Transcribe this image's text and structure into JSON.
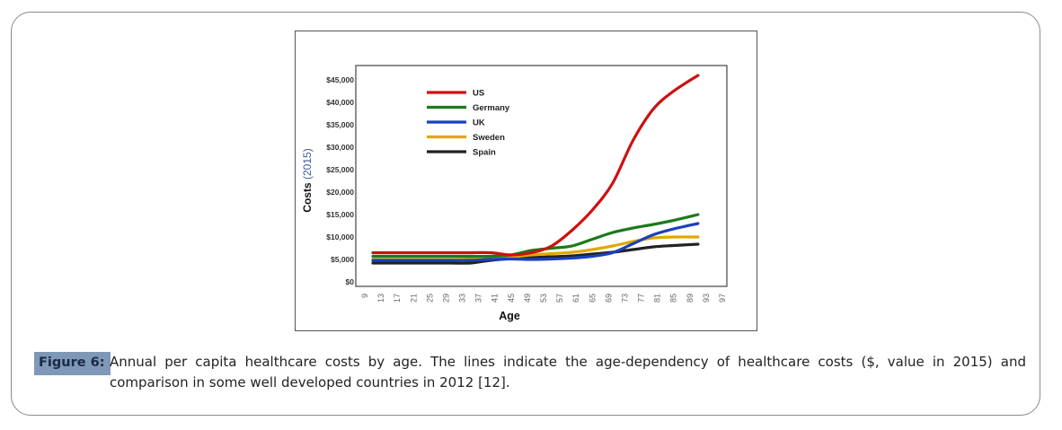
{
  "figure": {
    "label": "Figure 6:",
    "caption_line1": "Annual per capita healthcare costs by age. The lines indicate the age-dependency of healthcare costs ($, value in 2015) and",
    "caption_line2": "comparison in some well developed countries in 2012 [12]."
  },
  "chart_data": {
    "type": "line",
    "title": "",
    "xlabel": "Age",
    "ylabel": "Costs",
    "ylabel_suffix": "(2015)",
    "xlim": [
      9,
      97
    ],
    "ylim": [
      0,
      45000
    ],
    "grid": false,
    "legend_position": "top-left",
    "x_ticks": [
      9,
      13,
      17,
      21,
      25,
      29,
      33,
      37,
      41,
      45,
      49,
      53,
      57,
      61,
      65,
      69,
      73,
      77,
      81,
      85,
      89,
      93,
      97
    ],
    "y_ticks": [
      {
        "value": 0,
        "label": "$0"
      },
      {
        "value": 5000,
        "label": "$5,000"
      },
      {
        "value": 10000,
        "label": "$10,000"
      },
      {
        "value": 15000,
        "label": "$15,000"
      },
      {
        "value": 20000,
        "label": "$20,000"
      },
      {
        "value": 25000,
        "label": "$25,000"
      },
      {
        "value": 30000,
        "label": "$30,000"
      },
      {
        "value": 35000,
        "label": "$35,000"
      },
      {
        "value": 40000,
        "label": "$40,000"
      },
      {
        "value": 45000,
        "label": "$45,000"
      }
    ],
    "x": [
      11,
      15,
      20,
      25,
      30,
      35,
      40,
      45,
      50,
      55,
      60,
      65,
      70,
      75,
      80,
      85,
      91
    ],
    "series": [
      {
        "name": "US",
        "color": "#cc1111",
        "values": [
          6500,
          6500,
          6500,
          6500,
          6500,
          6500,
          6500,
          6000,
          6500,
          8000,
          11500,
          16000,
          22000,
          31500,
          38500,
          42500,
          46000
        ]
      },
      {
        "name": "Germany",
        "color": "#1a7a1a",
        "values": [
          5700,
          5700,
          5700,
          5700,
          5700,
          5700,
          5700,
          6000,
          7000,
          7500,
          8000,
          9500,
          11000,
          12000,
          12800,
          13700,
          15000
        ]
      },
      {
        "name": "UK",
        "color": "#1a3fbf",
        "values": [
          4800,
          4800,
          4800,
          4800,
          4800,
          4800,
          5000,
          5100,
          5000,
          5100,
          5300,
          5700,
          6500,
          8500,
          10500,
          11800,
          13000
        ]
      },
      {
        "name": "Sweden",
        "color": "#e0a800",
        "values": [
          5000,
          5000,
          5000,
          5000,
          5000,
          5100,
          5300,
          5600,
          6000,
          6300,
          6600,
          7200,
          8000,
          9000,
          9800,
          10000,
          10000
        ]
      },
      {
        "name": "Spain",
        "color": "#222222",
        "values": [
          4200,
          4200,
          4200,
          4200,
          4200,
          4200,
          4800,
          5200,
          5400,
          5600,
          5800,
          6200,
          6600,
          7200,
          7800,
          8100,
          8400
        ]
      }
    ]
  }
}
